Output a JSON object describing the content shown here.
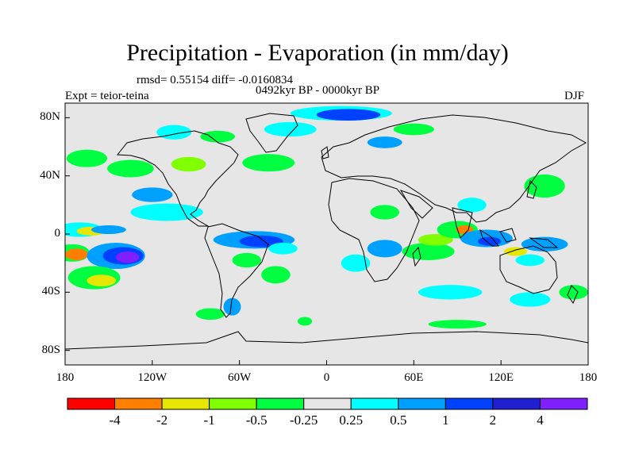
{
  "title": "Precipitation - Evaporation (in mm/day)",
  "stats": "rmsd= 0.55154 diff= -0.0160834",
  "period": "0492kyr BP - 0000kyr BP",
  "experiment": "Expt = teior-teina",
  "season": "DJF",
  "chart_data": {
    "type": "heatmap",
    "title": "Precipitation - Evaporation (in mm/day)",
    "subtitle": "0492kyr BP - 0000kyr BP",
    "xlim": [
      -180,
      180
    ],
    "ylim": [
      -90,
      90
    ],
    "x_ticks": [
      {
        "value": -180,
        "label": "180"
      },
      {
        "value": -120,
        "label": "120W"
      },
      {
        "value": -60,
        "label": "60W"
      },
      {
        "value": 0,
        "label": "0"
      },
      {
        "value": 60,
        "label": "60E"
      },
      {
        "value": 120,
        "label": "120E"
      },
      {
        "value": 180,
        "label": "180"
      }
    ],
    "y_ticks": [
      {
        "value": 80,
        "label": "80N"
      },
      {
        "value": 40,
        "label": "40N"
      },
      {
        "value": 0,
        "label": "0"
      },
      {
        "value": -40,
        "label": "40S"
      },
      {
        "value": -80,
        "label": "80S"
      }
    ],
    "colorbar": {
      "colors": [
        "#ff0000",
        "#ff8000",
        "#e6e600",
        "#80ff00",
        "#00ff40",
        "#e6e6e6",
        "#00ffff",
        "#00a0ff",
        "#0040ff",
        "#2020d0",
        "#8020ff"
      ],
      "labels": [
        "-4",
        "-2",
        "-1",
        "-0.5",
        "-0.25",
        "0.25",
        "0.5",
        "1",
        "2",
        "4"
      ]
    },
    "regions": [
      {
        "lon": -170,
        "lat": 3,
        "rx": 16,
        "ry": 5,
        "color": "#00ffff"
      },
      {
        "lon": -162,
        "lat": 2,
        "rx": 10,
        "ry": 3,
        "color": "#e6e600"
      },
      {
        "lon": -150,
        "lat": 3,
        "rx": 12,
        "ry": 3,
        "color": "#00a0ff"
      },
      {
        "lon": -175,
        "lat": -13,
        "rx": 12,
        "ry": 6,
        "color": "#00ff40"
      },
      {
        "lon": -172,
        "lat": -14,
        "rx": 8,
        "ry": 4,
        "color": "#ff8000"
      },
      {
        "lon": -145,
        "lat": -15,
        "rx": 20,
        "ry": 9,
        "color": "#00a0ff"
      },
      {
        "lon": -140,
        "lat": -15,
        "rx": 14,
        "ry": 6,
        "color": "#0040ff"
      },
      {
        "lon": -137,
        "lat": -16,
        "rx": 8,
        "ry": 4,
        "color": "#8020ff"
      },
      {
        "lon": -160,
        "lat": -30,
        "rx": 18,
        "ry": 8,
        "color": "#00ff40"
      },
      {
        "lon": -155,
        "lat": -32,
        "rx": 10,
        "ry": 4,
        "color": "#e6e600"
      },
      {
        "lon": -110,
        "lat": 15,
        "rx": 25,
        "ry": 6,
        "color": "#00ffff"
      },
      {
        "lon": -120,
        "lat": 27,
        "rx": 14,
        "ry": 5,
        "color": "#00a0ff"
      },
      {
        "lon": -165,
        "lat": 52,
        "rx": 14,
        "ry": 6,
        "color": "#00ff40"
      },
      {
        "lon": -135,
        "lat": 45,
        "rx": 16,
        "ry": 6,
        "color": "#00ff40"
      },
      {
        "lon": -95,
        "lat": 48,
        "rx": 12,
        "ry": 5,
        "color": "#80ff00"
      },
      {
        "lon": -105,
        "lat": 70,
        "rx": 12,
        "ry": 5,
        "color": "#00ffff"
      },
      {
        "lon": -75,
        "lat": 67,
        "rx": 12,
        "ry": 4,
        "color": "#00ff40"
      },
      {
        "lon": -40,
        "lat": 49,
        "rx": 18,
        "ry": 6,
        "color": "#00ff40"
      },
      {
        "lon": -25,
        "lat": 72,
        "rx": 18,
        "ry": 5,
        "color": "#00ffff"
      },
      {
        "lon": 10,
        "lat": 83,
        "rx": 35,
        "ry": 5,
        "color": "#00ffff"
      },
      {
        "lon": 15,
        "lat": 82,
        "rx": 22,
        "ry": 4,
        "color": "#0040ff"
      },
      {
        "lon": 40,
        "lat": 63,
        "rx": 12,
        "ry": 4,
        "color": "#00a0ff"
      },
      {
        "lon": 60,
        "lat": 72,
        "rx": 14,
        "ry": 4,
        "color": "#00ff40"
      },
      {
        "lon": -50,
        "lat": -4,
        "rx": 28,
        "ry": 6,
        "color": "#00a0ff"
      },
      {
        "lon": -45,
        "lat": -5,
        "rx": 15,
        "ry": 4,
        "color": "#0040ff"
      },
      {
        "lon": -55,
        "lat": -18,
        "rx": 10,
        "ry": 5,
        "color": "#00ff40"
      },
      {
        "lon": -30,
        "lat": -10,
        "rx": 10,
        "ry": 4,
        "color": "#00ffff"
      },
      {
        "lon": -35,
        "lat": -28,
        "rx": 10,
        "ry": 6,
        "color": "#00ff40"
      },
      {
        "lon": -65,
        "lat": -50,
        "rx": 6,
        "ry": 6,
        "color": "#00a0ff"
      },
      {
        "lon": 20,
        "lat": -20,
        "rx": 10,
        "ry": 6,
        "color": "#00ffff"
      },
      {
        "lon": 40,
        "lat": -10,
        "rx": 12,
        "ry": 6,
        "color": "#00a0ff"
      },
      {
        "lon": 40,
        "lat": 15,
        "rx": 10,
        "ry": 5,
        "color": "#00ff40"
      },
      {
        "lon": 70,
        "lat": -12,
        "rx": 18,
        "ry": 6,
        "color": "#00ff40"
      },
      {
        "lon": 75,
        "lat": -4,
        "rx": 12,
        "ry": 4,
        "color": "#80ff00"
      },
      {
        "lon": 90,
        "lat": 3,
        "rx": 14,
        "ry": 6,
        "color": "#00ff40"
      },
      {
        "lon": 95,
        "lat": 3,
        "rx": 6,
        "ry": 3,
        "color": "#ff8000"
      },
      {
        "lon": 110,
        "lat": -3,
        "rx": 18,
        "ry": 6,
        "color": "#00a0ff"
      },
      {
        "lon": 112,
        "lat": -5,
        "rx": 8,
        "ry": 3,
        "color": "#0040ff"
      },
      {
        "lon": 150,
        "lat": -7,
        "rx": 16,
        "ry": 5,
        "color": "#00a0ff"
      },
      {
        "lon": 130,
        "lat": -12,
        "rx": 8,
        "ry": 3,
        "color": "#e6e600"
      },
      {
        "lon": 140,
        "lat": -18,
        "rx": 10,
        "ry": 4,
        "color": "#00ffff"
      },
      {
        "lon": 150,
        "lat": 33,
        "rx": 14,
        "ry": 8,
        "color": "#00ff40"
      },
      {
        "lon": 100,
        "lat": 20,
        "rx": 10,
        "ry": 5,
        "color": "#00ffff"
      },
      {
        "lon": 85,
        "lat": -40,
        "rx": 22,
        "ry": 5,
        "color": "#00ffff"
      },
      {
        "lon": 140,
        "lat": -45,
        "rx": 14,
        "ry": 5,
        "color": "#00ffff"
      },
      {
        "lon": 170,
        "lat": -40,
        "rx": 10,
        "ry": 5,
        "color": "#00ff40"
      },
      {
        "lon": -80,
        "lat": -55,
        "rx": 10,
        "ry": 4,
        "color": "#00ff40"
      },
      {
        "lon": 90,
        "lat": -62,
        "rx": 20,
        "ry": 3,
        "color": "#00ff40"
      },
      {
        "lon": -15,
        "lat": -60,
        "rx": 5,
        "ry": 3,
        "color": "#00ff40"
      }
    ]
  }
}
